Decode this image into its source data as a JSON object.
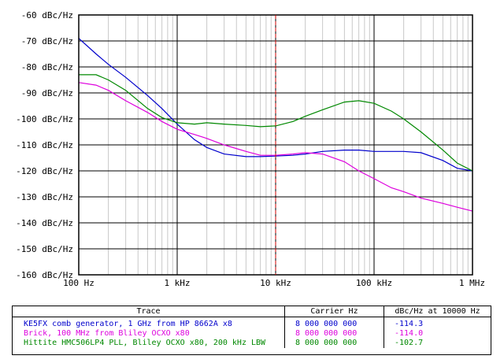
{
  "chart_data": {
    "type": "line",
    "xscale": "log",
    "xlim": [
      100,
      1000000
    ],
    "ylim": [
      -160,
      -60
    ],
    "grid": true,
    "x_ticks": [
      {
        "value": 100,
        "label": "100 Hz"
      },
      {
        "value": 1000,
        "label": "1 kHz"
      },
      {
        "value": 10000,
        "label": "10 kHz"
      },
      {
        "value": 100000,
        "label": "100 kHz"
      },
      {
        "value": 1000000,
        "label": "1 MHz"
      }
    ],
    "y_ticks": [
      {
        "value": -60,
        "label": "-60 dBc/Hz"
      },
      {
        "value": -70,
        "label": "-70 dBc/Hz"
      },
      {
        "value": -80,
        "label": "-80 dBc/Hz"
      },
      {
        "value": -90,
        "label": "-90 dBc/Hz"
      },
      {
        "value": -100,
        "label": "-100 dBc/Hz"
      },
      {
        "value": -110,
        "label": "-110 dBc/Hz"
      },
      {
        "value": -120,
        "label": "-120 dBc/Hz"
      },
      {
        "value": -130,
        "label": "-130 dBc/Hz"
      },
      {
        "value": -140,
        "label": "-140 dBc/Hz"
      },
      {
        "value": -150,
        "label": "-150 dBc/Hz"
      },
      {
        "value": -160,
        "label": "-160 dBc/Hz"
      }
    ],
    "marker_x": 10000,
    "marker_color": "#cc0000",
    "legend_headers": {
      "trace": "Trace",
      "carrier": "Carrier Hz",
      "value": "dBc/Hz at 10000 Hz"
    },
    "series": [
      {
        "name": "KE5FX comb generator, 1 GHz from HP 8662A x8",
        "carrier": "8 000 000 000",
        "value_at_marker": "-114.3",
        "color": "#0000cc",
        "x": [
          100,
          150,
          200,
          300,
          500,
          700,
          1000,
          1500,
          2000,
          3000,
          5000,
          7000,
          10000,
          15000,
          20000,
          30000,
          50000,
          70000,
          100000,
          150000,
          200000,
          300000,
          500000,
          700000,
          1000000
        ],
        "y": [
          -69,
          -75,
          -79,
          -84,
          -91,
          -96,
          -102,
          -108,
          -111,
          -113.5,
          -114.5,
          -114.5,
          -114.3,
          -114,
          -113.5,
          -112.5,
          -112,
          -112,
          -112.5,
          -112.5,
          -112.5,
          -113,
          -116,
          -119,
          -120
        ]
      },
      {
        "name": "Brick, 100 MHz from Bliley OCXO x80",
        "carrier": "8 000 000 000",
        "value_at_marker": "-114.0",
        "color": "#dd00dd",
        "x": [
          100,
          150,
          200,
          300,
          500,
          700,
          1000,
          1500,
          2000,
          3000,
          5000,
          7000,
          10000,
          15000,
          20000,
          30000,
          50000,
          70000,
          100000,
          150000,
          200000,
          300000,
          500000,
          700000,
          1000000
        ],
        "y": [
          -86,
          -87,
          -89,
          -93,
          -97.5,
          -101,
          -104,
          -106,
          -107.5,
          -110,
          -112.5,
          -114,
          -114,
          -113.5,
          -113,
          -113.5,
          -116.5,
          -120,
          -123,
          -126.5,
          -128,
          -130.5,
          -132.5,
          -134,
          -135.5
        ]
      },
      {
        "name": "Hittite HMC506LP4 PLL, Bliley OCXO x80, 200 kHz LBW",
        "carrier": "8 000 000 000",
        "value_at_marker": "-102.7",
        "color": "#008800",
        "x": [
          100,
          150,
          200,
          300,
          500,
          700,
          1000,
          1500,
          2000,
          3000,
          5000,
          7000,
          10000,
          15000,
          20000,
          30000,
          50000,
          70000,
          100000,
          150000,
          200000,
          300000,
          500000,
          700000,
          1000000
        ],
        "y": [
          -83,
          -83,
          -85,
          -89,
          -96,
          -99.5,
          -101.5,
          -102,
          -101.5,
          -102,
          -102.5,
          -103,
          -102.7,
          -101,
          -99,
          -96.5,
          -93.5,
          -93,
          -94,
          -97,
          -100,
          -105,
          -112,
          -117,
          -120
        ]
      }
    ]
  }
}
